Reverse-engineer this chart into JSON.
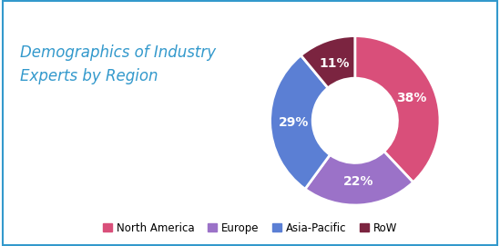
{
  "title": "Demographics of Industry\nExperts by Region",
  "title_color": "#3399cc",
  "title_fontsize": 12,
  "labels": [
    "North America",
    "Europe",
    "Asia-Pacific",
    "RoW"
  ],
  "values": [
    38,
    22,
    29,
    11
  ],
  "colors": [
    "#d94f7a",
    "#9b72c8",
    "#5b7fd4",
    "#7b2440"
  ],
  "pct_labels": [
    "38%",
    "22%",
    "29%",
    "11%"
  ],
  "pct_color": "#ffffff",
  "pct_fontsize": 10,
  "legend_fontsize": 8.5,
  "background_color": "#ffffff",
  "border_color": "#3399cc"
}
